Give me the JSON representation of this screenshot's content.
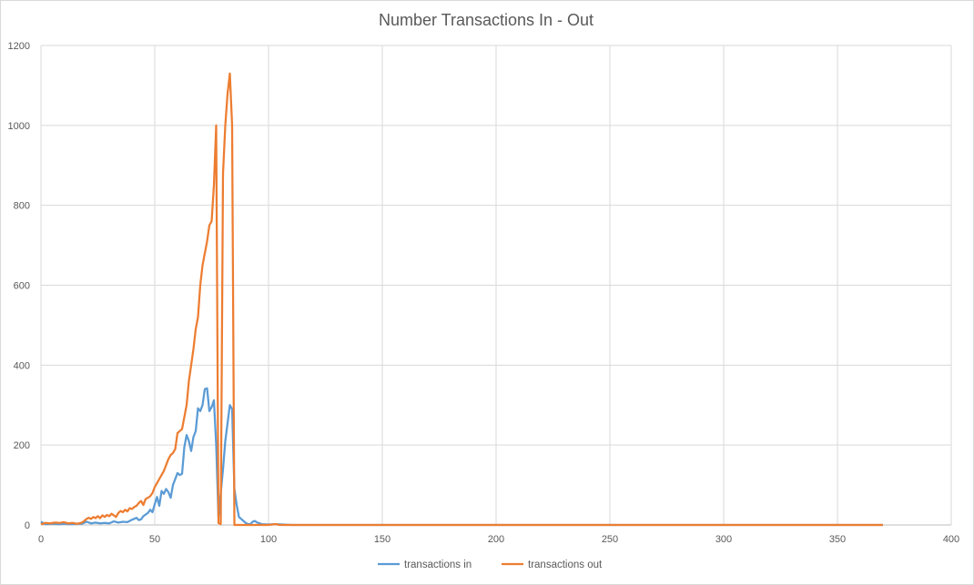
{
  "chart_data": {
    "type": "line",
    "title": "Number Transactions In - Out",
    "xlabel": "",
    "ylabel": "",
    "xlim": [
      0,
      400
    ],
    "ylim": [
      0,
      1200
    ],
    "x_ticks": [
      "0",
      "50",
      "100",
      "150",
      "200",
      "250",
      "300",
      "350",
      "400"
    ],
    "y_ticks": [
      "0",
      "200",
      "400",
      "600",
      "800",
      "1000",
      "1200"
    ],
    "grid": true,
    "legend_position": "bottom",
    "series": [
      {
        "name": "transactions in",
        "color": "#5b9bd5",
        "points": [
          [
            0,
            8
          ],
          [
            2,
            2
          ],
          [
            5,
            3
          ],
          [
            8,
            2
          ],
          [
            10,
            3
          ],
          [
            13,
            2
          ],
          [
            16,
            3
          ],
          [
            18,
            3
          ],
          [
            20,
            8
          ],
          [
            22,
            4
          ],
          [
            24,
            6
          ],
          [
            26,
            4
          ],
          [
            28,
            5
          ],
          [
            30,
            4
          ],
          [
            32,
            9
          ],
          [
            34,
            6
          ],
          [
            36,
            8
          ],
          [
            38,
            7
          ],
          [
            40,
            13
          ],
          [
            42,
            18
          ],
          [
            43,
            12
          ],
          [
            44,
            14
          ],
          [
            45,
            22
          ],
          [
            46,
            26
          ],
          [
            47,
            30
          ],
          [
            48,
            38
          ],
          [
            49,
            32
          ],
          [
            50,
            52
          ],
          [
            51,
            70
          ],
          [
            52,
            48
          ],
          [
            53,
            85
          ],
          [
            54,
            78
          ],
          [
            55,
            90
          ],
          [
            56,
            82
          ],
          [
            57,
            68
          ],
          [
            58,
            100
          ],
          [
            59,
            115
          ],
          [
            60,
            130
          ],
          [
            61,
            125
          ],
          [
            62,
            128
          ],
          [
            63,
            195
          ],
          [
            64,
            225
          ],
          [
            65,
            210
          ],
          [
            66,
            185
          ],
          [
            67,
            220
          ],
          [
            68,
            235
          ],
          [
            69,
            292
          ],
          [
            70,
            285
          ],
          [
            71,
            300
          ],
          [
            72,
            340
          ],
          [
            73,
            342
          ],
          [
            74,
            285
          ],
          [
            75,
            295
          ],
          [
            76,
            312
          ],
          [
            77,
            200
          ],
          [
            78,
            20
          ],
          [
            79,
            80
          ],
          [
            80,
            140
          ],
          [
            81,
            210
          ],
          [
            82,
            255
          ],
          [
            83,
            300
          ],
          [
            84,
            290
          ],
          [
            85,
            90
          ],
          [
            86,
            50
          ],
          [
            87,
            20
          ],
          [
            88,
            15
          ],
          [
            89,
            10
          ],
          [
            90,
            5
          ],
          [
            91,
            2
          ],
          [
            92,
            2
          ],
          [
            93,
            8
          ],
          [
            94,
            10
          ],
          [
            95,
            6
          ],
          [
            97,
            2
          ],
          [
            100,
            1
          ],
          [
            103,
            2
          ],
          [
            110,
            0
          ],
          [
            200,
            0
          ],
          [
            300,
            0
          ],
          [
            370,
            0
          ]
        ]
      },
      {
        "name": "transactions out",
        "color": "#ed7d31",
        "points": [
          [
            0,
            2
          ],
          [
            2,
            5
          ],
          [
            4,
            4
          ],
          [
            6,
            6
          ],
          [
            8,
            5
          ],
          [
            10,
            7
          ],
          [
            12,
            4
          ],
          [
            14,
            5
          ],
          [
            16,
            3
          ],
          [
            18,
            6
          ],
          [
            19,
            10
          ],
          [
            20,
            15
          ],
          [
            21,
            18
          ],
          [
            22,
            15
          ],
          [
            23,
            20
          ],
          [
            24,
            17
          ],
          [
            25,
            22
          ],
          [
            26,
            17
          ],
          [
            27,
            24
          ],
          [
            28,
            20
          ],
          [
            29,
            25
          ],
          [
            30,
            22
          ],
          [
            31,
            28
          ],
          [
            32,
            24
          ],
          [
            33,
            20
          ],
          [
            34,
            30
          ],
          [
            35,
            35
          ],
          [
            36,
            32
          ],
          [
            37,
            38
          ],
          [
            38,
            34
          ],
          [
            39,
            42
          ],
          [
            40,
            40
          ],
          [
            41,
            45
          ],
          [
            42,
            48
          ],
          [
            43,
            55
          ],
          [
            44,
            60
          ],
          [
            45,
            50
          ],
          [
            46,
            65
          ],
          [
            47,
            68
          ],
          [
            48,
            72
          ],
          [
            49,
            80
          ],
          [
            50,
            95
          ],
          [
            51,
            105
          ],
          [
            52,
            115
          ],
          [
            53,
            125
          ],
          [
            54,
            135
          ],
          [
            55,
            150
          ],
          [
            56,
            165
          ],
          [
            57,
            175
          ],
          [
            58,
            180
          ],
          [
            59,
            190
          ],
          [
            60,
            230
          ],
          [
            61,
            235
          ],
          [
            62,
            240
          ],
          [
            63,
            270
          ],
          [
            64,
            300
          ],
          [
            65,
            360
          ],
          [
            66,
            400
          ],
          [
            67,
            440
          ],
          [
            68,
            490
          ],
          [
            69,
            520
          ],
          [
            70,
            600
          ],
          [
            71,
            650
          ],
          [
            72,
            680
          ],
          [
            73,
            710
          ],
          [
            74,
            750
          ],
          [
            75,
            760
          ],
          [
            76,
            850
          ],
          [
            77,
            1000
          ],
          [
            78,
            5
          ],
          [
            79,
            2
          ],
          [
            80,
            880
          ],
          [
            81,
            1000
          ],
          [
            82,
            1080
          ],
          [
            83,
            1130
          ],
          [
            84,
            1000
          ],
          [
            85,
            0
          ],
          [
            86,
            0
          ],
          [
            90,
            0
          ],
          [
            100,
            0
          ],
          [
            103,
            2
          ],
          [
            105,
            0
          ],
          [
            224,
            0
          ],
          [
            247,
            0
          ],
          [
            250,
            0
          ],
          [
            331,
            0
          ],
          [
            343,
            0
          ],
          [
            370,
            0
          ]
        ]
      }
    ]
  }
}
